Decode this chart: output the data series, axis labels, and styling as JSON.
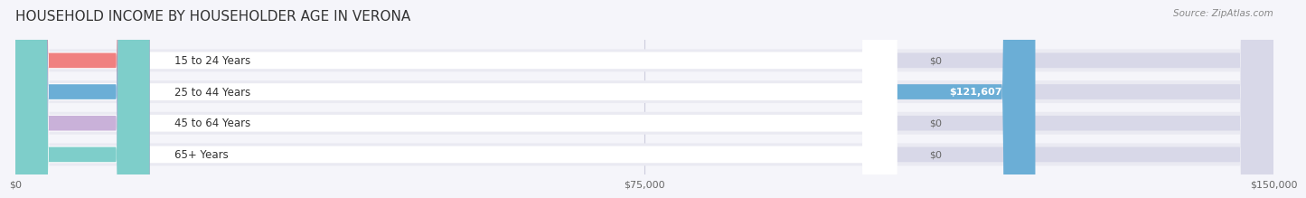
{
  "title": "HOUSEHOLD INCOME BY HOUSEHOLDER AGE IN VERONA",
  "source": "Source: ZipAtlas.com",
  "categories": [
    "15 to 24 Years",
    "25 to 44 Years",
    "45 to 64 Years",
    "65+ Years"
  ],
  "values": [
    0,
    121607,
    0,
    0
  ],
  "bar_colors": [
    "#f08080",
    "#6baed6",
    "#c9b1d9",
    "#7ececa"
  ],
  "xlim": [
    0,
    150000
  ],
  "xtick_labels": [
    "$0",
    "$75,000",
    "$150,000"
  ],
  "title_color": "#333333",
  "source_color": "#888888",
  "bg_color": "#f5f5fa",
  "row_bg_color": "#eaeaf2",
  "grid_color": "#ccccdd"
}
